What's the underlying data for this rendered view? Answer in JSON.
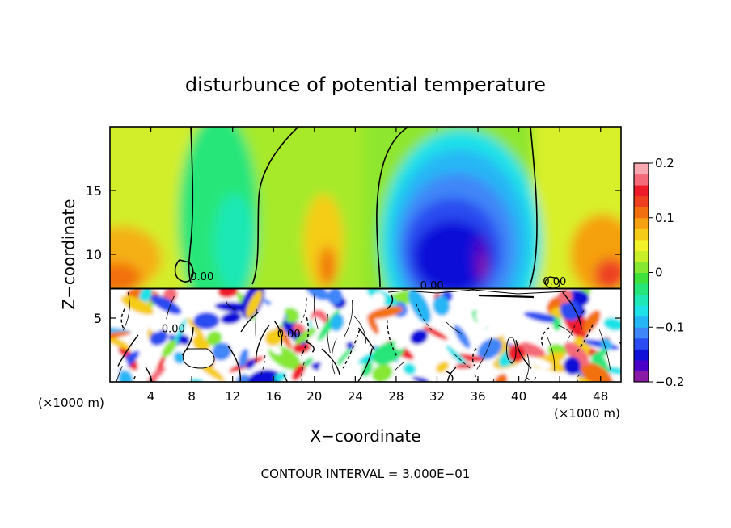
{
  "chart_data": {
    "type": "heatmap",
    "title": "disturbunce of potential temperature",
    "xlabel": "X−coordinate",
    "ylabel": "Z−coordinate",
    "x_unit": "(×1000 m)",
    "x_unit_right": "(×1000 m)",
    "xlim": [
      0,
      50
    ],
    "ylim": [
      0,
      20
    ],
    "x_ticks": [
      4,
      8,
      12,
      16,
      20,
      24,
      28,
      32,
      36,
      40,
      44,
      48
    ],
    "y_ticks": [
      5,
      10,
      15
    ],
    "colorbar": {
      "range": [
        -0.2,
        0.2
      ],
      "ticks": [
        {
          "value": 0.2,
          "label": "0.2"
        },
        {
          "value": 0.1,
          "label": "0.1"
        },
        {
          "value": 0.0,
          "label": "0"
        },
        {
          "value": -0.1,
          "label": "−0.1"
        },
        {
          "value": -0.2,
          "label": "−0.2"
        }
      ],
      "colors": [
        "#8a1aa6",
        "#4b00c8",
        "#1010d8",
        "#2a4cf0",
        "#3f86f8",
        "#25b6f5",
        "#1fe2e8",
        "#1fe8b6",
        "#26e67a",
        "#3ee23a",
        "#86e830",
        "#c8ee2a",
        "#f2f22a",
        "#f5cc18",
        "#f5a010",
        "#f26f10",
        "#ee4020",
        "#ee1c2a",
        "#f56a78",
        "#f8a8b0"
      ]
    },
    "contour_labels": [
      {
        "x": 9.0,
        "z": 8.3,
        "text": "0.00"
      },
      {
        "x": 31.5,
        "z": 7.6,
        "text": "0.00"
      },
      {
        "x": 43.5,
        "z": 7.9,
        "text": "0.00"
      },
      {
        "x": 6.2,
        "z": 4.2,
        "text": "0.00"
      },
      {
        "x": 17.5,
        "z": 3.8,
        "text": "0.00"
      }
    ],
    "annotation": "CONTOUR INTERVAL =  3.000E−01"
  }
}
